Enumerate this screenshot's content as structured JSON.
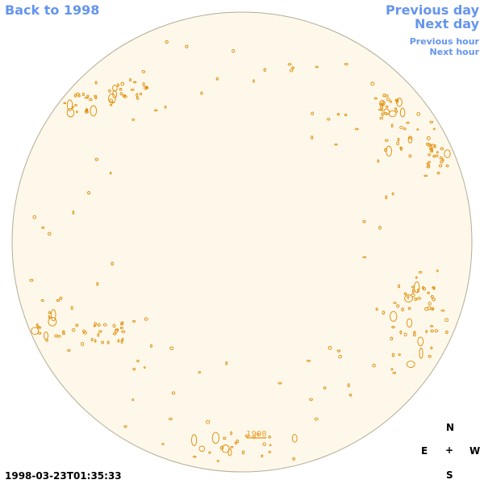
{
  "nav": {
    "back_label": "Back to 1998",
    "previous_day_label": "Previous day",
    "next_day_label": "Next day",
    "previous_hour_label": "Previous hour",
    "next_hour_label": "Next hour"
  },
  "disk": {
    "year_link_label": "1998",
    "fill_color": "#fdf8ea",
    "limb_color": "#b5ac98",
    "contour_color": "#e08a00",
    "link_color": "#f0a030"
  },
  "timestamp": "1998-03-23T01:35:33",
  "compass": {
    "north": "N",
    "east": "E",
    "center": "+",
    "west": "W",
    "south": "S"
  },
  "colors": {
    "nav_link": "#6495ed"
  }
}
